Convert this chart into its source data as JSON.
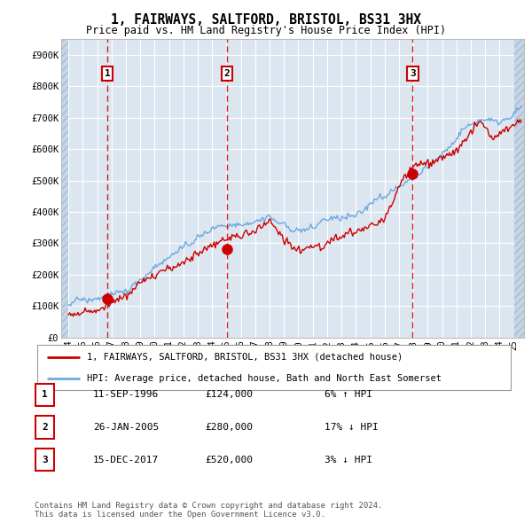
{
  "title": "1, FAIRWAYS, SALTFORD, BRISTOL, BS31 3HX",
  "subtitle": "Price paid vs. HM Land Registry's House Price Index (HPI)",
  "ylim": [
    0,
    950000
  ],
  "yticks": [
    0,
    100000,
    200000,
    300000,
    400000,
    500000,
    600000,
    700000,
    800000,
    900000
  ],
  "ytick_labels": [
    "£0",
    "£100K",
    "£200K",
    "£300K",
    "£400K",
    "£500K",
    "£600K",
    "£700K",
    "£800K",
    "£900K"
  ],
  "xlim_start": 1993.5,
  "xlim_end": 2025.7,
  "plot_bg_color": "#dce6f1",
  "hatch_color": "#c5d5e8",
  "grid_color": "#ffffff",
  "sale_color": "#cc0000",
  "hpi_color": "#6fa8dc",
  "purchases": [
    {
      "number": 1,
      "year": 1996.7,
      "price": 124000,
      "date": "11-SEP-1996",
      "pct": "6%",
      "dir": "↑"
    },
    {
      "number": 2,
      "year": 2005.05,
      "price": 280000,
      "date": "26-JAN-2005",
      "pct": "17%",
      "dir": "↓"
    },
    {
      "number": 3,
      "year": 2017.95,
      "price": 520000,
      "date": "15-DEC-2017",
      "pct": "3%",
      "dir": "↓"
    }
  ],
  "legend_label_sale": "1, FAIRWAYS, SALTFORD, BRISTOL, BS31 3HX (detached house)",
  "legend_label_hpi": "HPI: Average price, detached house, Bath and North East Somerset",
  "footer": "Contains HM Land Registry data © Crown copyright and database right 2024.\nThis data is licensed under the Open Government Licence v3.0.",
  "xtick_years": [
    1994,
    1995,
    1996,
    1997,
    1998,
    1999,
    2000,
    2001,
    2002,
    2003,
    2004,
    2005,
    2006,
    2007,
    2008,
    2009,
    2010,
    2011,
    2012,
    2013,
    2014,
    2015,
    2016,
    2017,
    2018,
    2019,
    2020,
    2021,
    2022,
    2023,
    2024,
    2025
  ],
  "hpi_seed": 42,
  "sale_seed": 99
}
